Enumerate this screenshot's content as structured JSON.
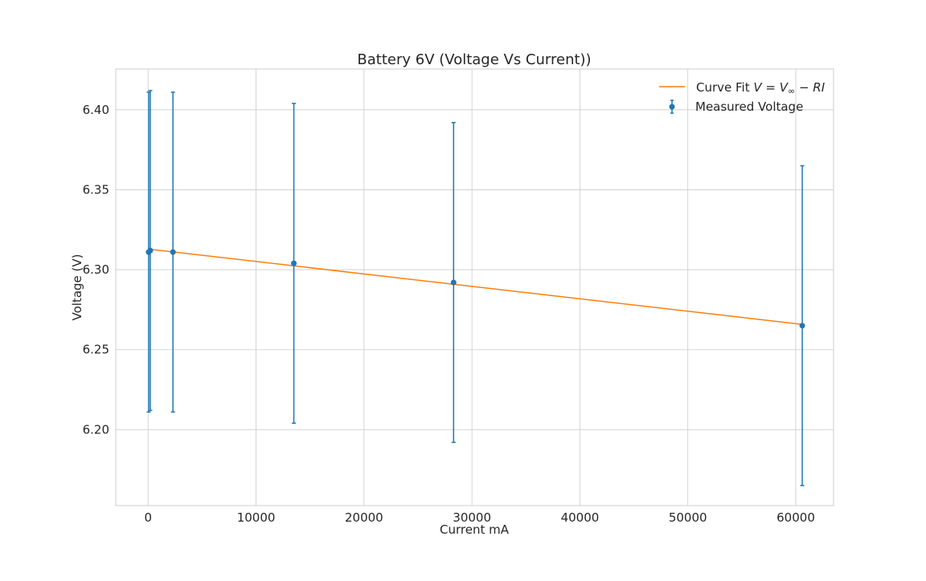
{
  "chart_data": {
    "type": "scatter",
    "title": "Battery 6V (Voltage Vs Current))",
    "xlabel": "Current mA",
    "ylabel": "Voltage (V)",
    "xlim": [
      -3000,
      63500
    ],
    "ylim": [
      6.1525,
      6.4255
    ],
    "xticks": [
      0,
      10000,
      20000,
      30000,
      40000,
      50000,
      60000
    ],
    "xtick_labels": [
      "0",
      "10000",
      "20000",
      "30000",
      "40000",
      "50000",
      "60000"
    ],
    "yticks": [
      6.2,
      6.25,
      6.3,
      6.35,
      6.4
    ],
    "ytick_labels": [
      "6.20",
      "6.25",
      "6.30",
      "6.35",
      "6.40"
    ],
    "grid": true,
    "legend_position": "top-right",
    "series": [
      {
        "name": "Curve Fit",
        "kind": "line",
        "color": "#ff7f0e",
        "x": [
          0,
          60600
        ],
        "y": [
          6.3129,
          6.2658
        ]
      },
      {
        "name": "Measured Voltage",
        "kind": "errorbar",
        "color": "#1f77b4",
        "x": [
          50,
          200,
          2300,
          13500,
          28300,
          60600
        ],
        "y": [
          6.311,
          6.312,
          6.311,
          6.304,
          6.292,
          6.265
        ],
        "yerr": [
          0.1,
          0.1,
          0.1,
          0.1,
          0.1,
          0.1
        ]
      }
    ],
    "legend": {
      "fit_label_prefix": "Curve Fit ",
      "fit_formula_v": "V",
      "fit_formula_eq": " = ",
      "fit_formula_vinf": "V",
      "fit_formula_inf": "∞",
      "fit_formula_minus": " − ",
      "fit_formula_ri": "RI",
      "measured_label": "Measured Voltage"
    }
  }
}
